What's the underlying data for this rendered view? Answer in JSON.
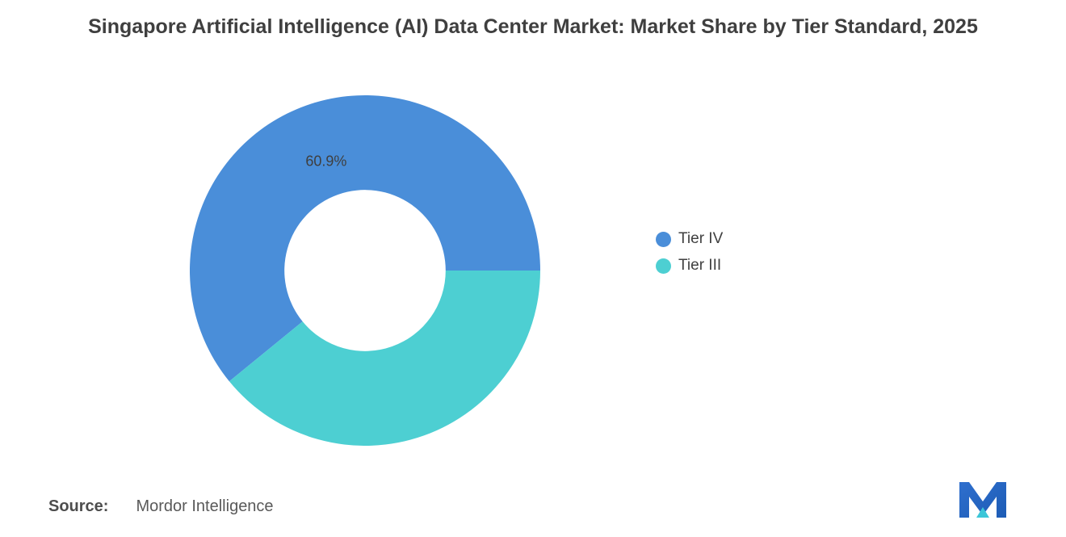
{
  "title": "Singapore Artificial Intelligence (AI) Data Center Market: Market Share by Tier Standard, 2025",
  "chart_data": {
    "type": "pie",
    "subtype": "donut",
    "title": "Singapore Artificial Intelligence (AI) Data Center Market: Market Share by Tier Standard, 2025",
    "slices": [
      {
        "label": "Tier IV",
        "value": 60.9,
        "color": "#4a8ed9",
        "data_label": "60.9%"
      },
      {
        "label": "Tier III",
        "value": 39.1,
        "color": "#4dcfd2",
        "data_label": ""
      }
    ],
    "start_angle_deg": -129.24,
    "inner_radius_ratio": 0.46,
    "legend_position": "right",
    "data_label_color": "#3f3f3f"
  },
  "legend": {
    "items": [
      {
        "label": "Tier IV",
        "color": "#4a8ed9"
      },
      {
        "label": "Tier III",
        "color": "#4dcfd2"
      }
    ]
  },
  "source": {
    "prefix": "Source:",
    "text": "Mordor Intelligence"
  },
  "logo": {
    "name": "mordor-intelligence-logo",
    "color_primary": "#2f6fce",
    "color_dark": "#1d5cb5",
    "color_accent": "#3cc6d8"
  }
}
